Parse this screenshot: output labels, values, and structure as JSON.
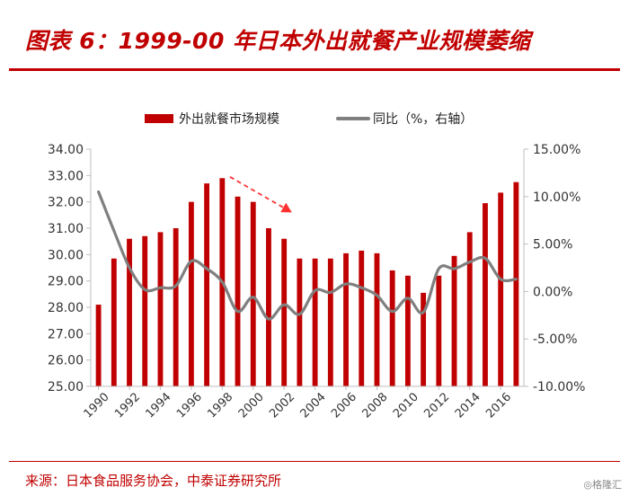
{
  "header": {
    "title": "图表 6：1999-00 年日本外出就餐产业规模萎缩"
  },
  "footer": {
    "source": "来源：日本食品服务协会，中泰证券研究所",
    "watermark": "◎格隆汇"
  },
  "colors": {
    "accent": "#c00000",
    "bar": "#c00000",
    "line": "#7f7f7f",
    "arrow": "#ff3030"
  },
  "chart_data": {
    "type": "bar",
    "title": "",
    "legend": {
      "position": "top",
      "bar_label": "外出就餐市场规模",
      "line_label": "同比（%，右轴）"
    },
    "categories": [
      "1990",
      "1991",
      "1992",
      "1993",
      "1994",
      "1995",
      "1996",
      "1997",
      "1998",
      "1999",
      "2000",
      "2001",
      "2002",
      "2003",
      "2004",
      "2005",
      "2006",
      "2007",
      "2008",
      "2009",
      "2010",
      "2011",
      "2012",
      "2013",
      "2014",
      "2015",
      "2016",
      "2017"
    ],
    "x_tick_labels": [
      "1990",
      "1992",
      "1994",
      "1996",
      "1998",
      "2000",
      "2002",
      "2004",
      "2006",
      "2008",
      "2010",
      "2012",
      "2014",
      "2016"
    ],
    "series": [
      {
        "name": "外出就餐市场规模",
        "type": "bar",
        "axis": "left",
        "values": [
          28.1,
          29.85,
          30.6,
          30.7,
          30.85,
          31.0,
          32.0,
          32.7,
          32.9,
          32.2,
          32.0,
          31.0,
          30.6,
          29.85,
          29.85,
          29.85,
          30.05,
          30.15,
          30.05,
          29.4,
          29.2,
          28.55,
          29.2,
          29.95,
          30.85,
          31.95,
          32.35,
          32.75
        ]
      },
      {
        "name": "同比（%，右轴）",
        "type": "line",
        "axis": "right",
        "values": [
          10.5,
          6.4,
          2.5,
          0.2,
          0.4,
          0.6,
          3.2,
          2.4,
          1.0,
          -2.1,
          -0.6,
          -2.9,
          -1.4,
          -2.4,
          0.1,
          -0.1,
          0.8,
          0.4,
          -0.4,
          -2.1,
          -0.7,
          -2.2,
          2.4,
          2.4,
          3.1,
          3.5,
          1.3,
          1.3
        ]
      }
    ],
    "y_left": {
      "min": 25.0,
      "max": 34.0,
      "ticks": [
        "34.00",
        "33.00",
        "32.00",
        "31.00",
        "30.00",
        "29.00",
        "28.00",
        "27.00",
        "26.00",
        "25.00"
      ]
    },
    "y_right": {
      "min": -10.0,
      "max": 15.0,
      "ticks": [
        "15.00%",
        "10.00%",
        "5.00%",
        "0.00%",
        "-5.00%",
        "-10.00%"
      ]
    },
    "annotation": {
      "type": "dashed-arrow",
      "from": {
        "category": "1998.5",
        "value": 32.95
      },
      "to": {
        "category": "2002.5",
        "value": 31.6
      }
    },
    "grid": false
  }
}
